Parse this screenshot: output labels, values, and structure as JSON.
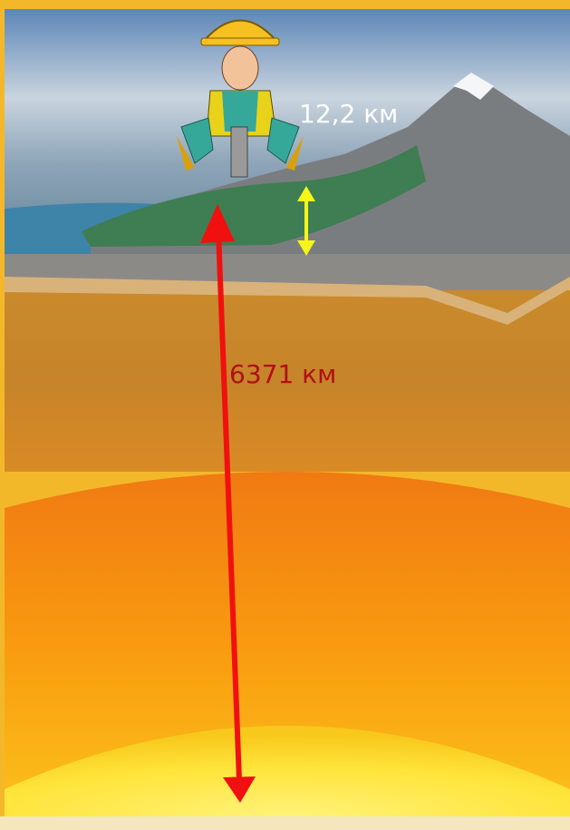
{
  "labels": {
    "depth": "12,2 км",
    "radius": "6371 км"
  }
}
